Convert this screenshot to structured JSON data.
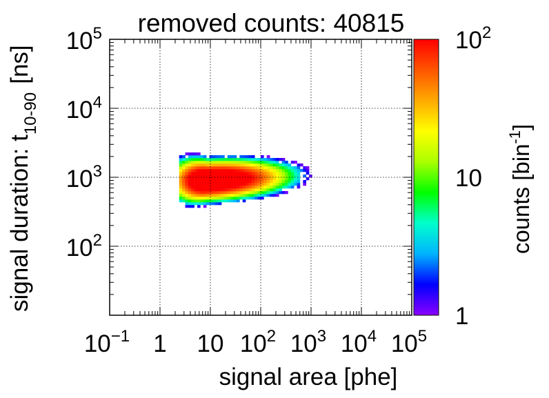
{
  "chart_data": {
    "type": "heatmap",
    "title": "removed counts: 40815",
    "xlabel": "signal area [phe]",
    "ylabel": {
      "main": "signal duration: t",
      "subscript": "10-90",
      "unit": "[ns]"
    },
    "zlabel": {
      "main": "counts [bin",
      "superscript": "-1",
      "close": "]"
    },
    "x_scale": "log",
    "y_scale": "log",
    "z_scale": "log",
    "xlim": [
      0.1,
      100000
    ],
    "ylim": [
      10,
      100000
    ],
    "zlim": [
      1,
      100
    ],
    "grid": true,
    "x_ticks": [
      {
        "value": 0.1,
        "base": "10",
        "exp": "−1"
      },
      {
        "value": 1,
        "base": "1",
        "exp": ""
      },
      {
        "value": 10,
        "base": "10",
        "exp": ""
      },
      {
        "value": 100,
        "base": "10",
        "exp": "2"
      },
      {
        "value": 1000,
        "base": "10",
        "exp": "3"
      },
      {
        "value": 10000,
        "base": "10",
        "exp": "4"
      },
      {
        "value": 100000,
        "base": "10",
        "exp": "5"
      }
    ],
    "y_ticks": [
      {
        "value": 100,
        "base": "10",
        "exp": "2"
      },
      {
        "value": 1000,
        "base": "10",
        "exp": "3"
      },
      {
        "value": 10000,
        "base": "10",
        "exp": "4"
      },
      {
        "value": 100000,
        "base": "10",
        "exp": "5"
      }
    ],
    "z_ticks": [
      {
        "value": 1,
        "base": "1",
        "exp": ""
      },
      {
        "value": 10,
        "base": "10",
        "exp": ""
      },
      {
        "value": 100,
        "base": "10",
        "exp": "2"
      }
    ],
    "distribution": {
      "core_x": 9,
      "core_y": 900,
      "x_min": 2.5,
      "x_max": 1500,
      "y_min": 260,
      "y_max": 2200,
      "peak_counts": 100
    },
    "colors": {
      "palette": [
        "#8a00ff",
        "#0000ff",
        "#00b4ff",
        "#00ffcc",
        "#00ff00",
        "#aaff00",
        "#ffff00",
        "#ffaa00",
        "#ff5500",
        "#ff0000"
      ],
      "axis": "#000000",
      "grid": "#000000"
    }
  }
}
